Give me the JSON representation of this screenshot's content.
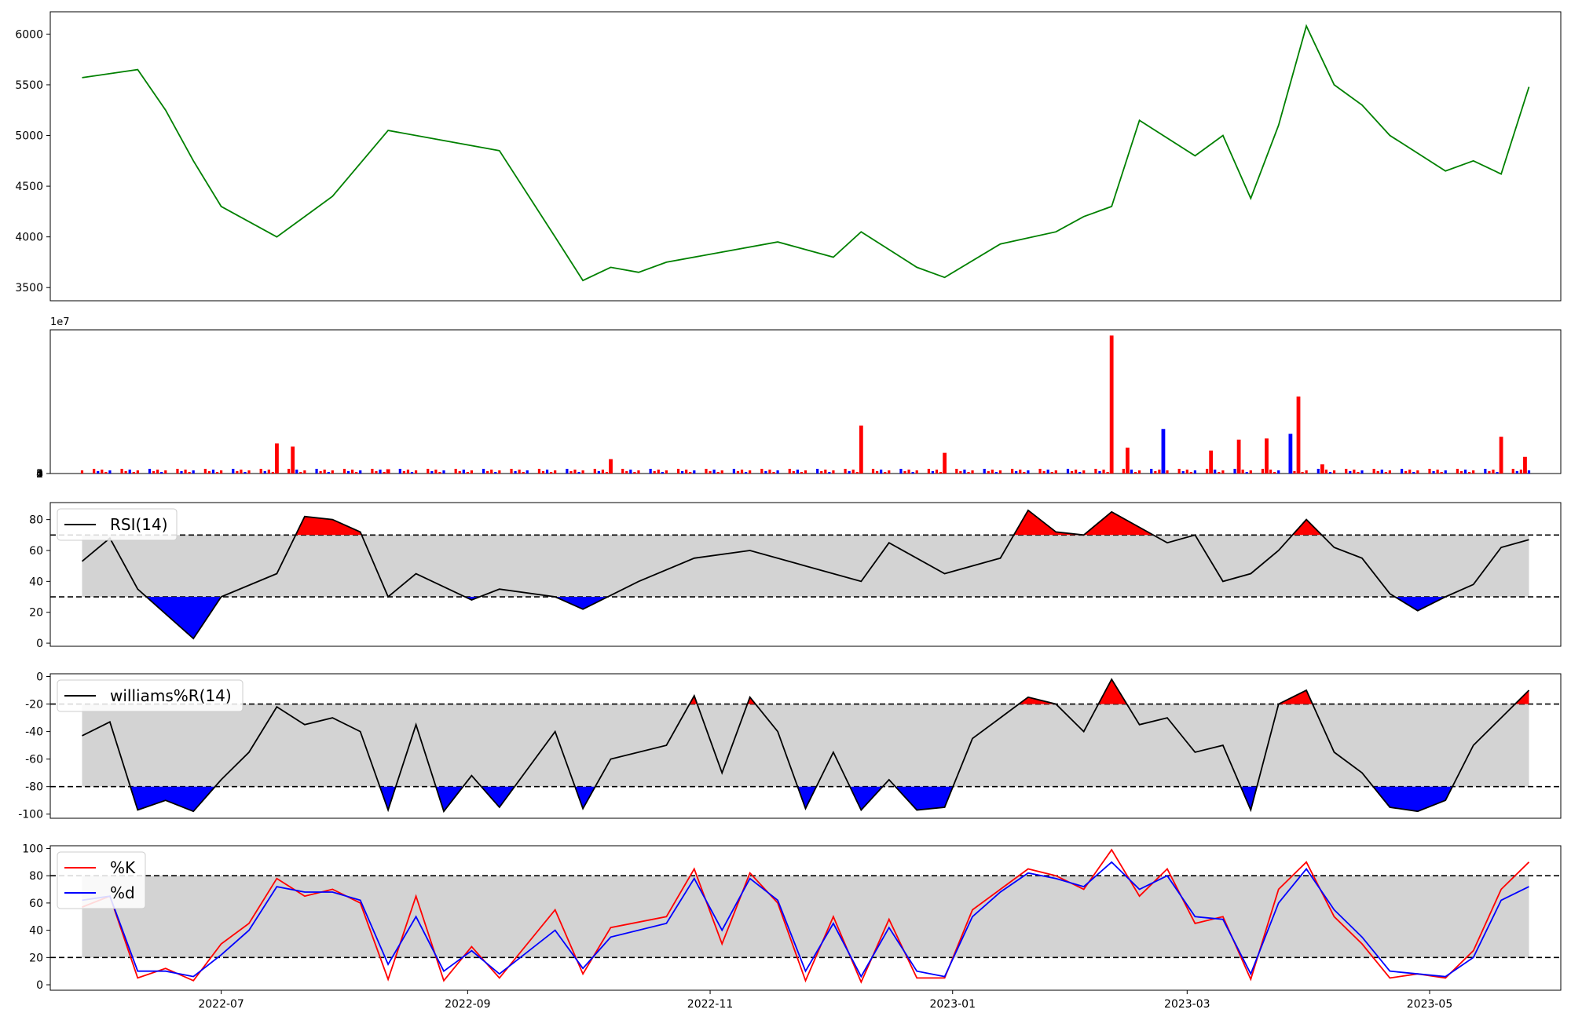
{
  "chart_data": [
    {
      "panel": "price",
      "type": "line",
      "color": "#008000",
      "yticks": [
        "3500",
        "4000",
        "4500",
        "5000",
        "5500",
        "6000"
      ],
      "ylim": [
        3370,
        6220
      ],
      "x": [
        "2022-05-27",
        "2022-06-10",
        "2022-06-17",
        "2022-06-24",
        "2022-07-01",
        "2022-07-15",
        "2022-07-29",
        "2022-08-12",
        "2022-08-26",
        "2022-09-09",
        "2022-09-23",
        "2022-09-30",
        "2022-10-07",
        "2022-10-14",
        "2022-10-21",
        "2022-11-04",
        "2022-11-18",
        "2022-12-02",
        "2022-12-09",
        "2022-12-23",
        "2022-12-30",
        "2023-01-13",
        "2023-01-27",
        "2023-02-03",
        "2023-02-10",
        "2023-02-17",
        "2023-03-03",
        "2023-03-10",
        "2023-03-17",
        "2023-03-24",
        "2023-03-31",
        "2023-04-07",
        "2023-04-14",
        "2023-04-21",
        "2023-05-05",
        "2023-05-12",
        "2023-05-19",
        "2023-05-26"
      ],
      "y": [
        5570,
        5650,
        5250,
        4750,
        4300,
        4000,
        4400,
        5050,
        4950,
        4850,
        4000,
        3570,
        3700,
        3650,
        3750,
        3850,
        3950,
        3800,
        4050,
        3700,
        3600,
        3930,
        4050,
        4200,
        4300,
        5150,
        4800,
        5000,
        4380,
        5100,
        6080,
        5500,
        5300,
        5000,
        4650,
        4750,
        4620,
        5480
      ]
    },
    {
      "panel": "volume",
      "type": "bar",
      "exponent_label": "1e7",
      "yticks": [
        "0",
        "1",
        "2",
        "3",
        "4",
        "5"
      ],
      "ylim": [
        0,
        50000000
      ],
      "up_color": "#ff0000",
      "down_color": "#0000ff",
      "x": [
        "2022-07-15",
        "2022-07-19",
        "2022-08-12",
        "2022-10-07",
        "2022-12-09",
        "2022-12-30",
        "2023-02-10",
        "2023-02-14",
        "2023-02-23",
        "2023-03-07",
        "2023-03-14",
        "2023-03-21",
        "2023-03-27",
        "2023-03-29",
        "2023-04-04",
        "2023-05-19",
        "2023-05-25"
      ],
      "y": [
        10500000,
        9400000,
        1500000,
        5000000,
        16700000,
        7200000,
        48000000,
        9000000,
        15500000,
        8000000,
        11800000,
        12200000,
        13800000,
        26800000,
        3200000,
        12800000,
        5800000
      ],
      "up": [
        true,
        true,
        true,
        true,
        true,
        true,
        true,
        true,
        false,
        true,
        true,
        true,
        false,
        true,
        true,
        true,
        true
      ]
    },
    {
      "panel": "rsi",
      "type": "line",
      "legend": "RSI(14)",
      "color": "#000000",
      "overbought_color": "#ff0000",
      "oversold_color": "#0000ff",
      "band_color": "#d3d3d3",
      "upper": 70,
      "lower": 30,
      "yticks": [
        "0",
        "20",
        "40",
        "60",
        "80"
      ],
      "ylim": [
        -2,
        91
      ],
      "x": [
        "2022-05-27",
        "2022-06-03",
        "2022-06-10",
        "2022-06-24",
        "2022-07-01",
        "2022-07-15",
        "2022-07-22",
        "2022-07-29",
        "2022-08-05",
        "2022-08-12",
        "2022-08-19",
        "2022-09-02",
        "2022-09-09",
        "2022-09-23",
        "2022-09-30",
        "2022-10-14",
        "2022-10-28",
        "2022-11-11",
        "2022-11-25",
        "2022-12-09",
        "2022-12-16",
        "2022-12-30",
        "2023-01-13",
        "2023-01-20",
        "2023-01-27",
        "2023-02-03",
        "2023-02-10",
        "2023-02-17",
        "2023-02-24",
        "2023-03-03",
        "2023-03-10",
        "2023-03-17",
        "2023-03-24",
        "2023-03-31",
        "2023-04-07",
        "2023-04-14",
        "2023-04-21",
        "2023-04-28",
        "2023-05-05",
        "2023-05-12",
        "2023-05-19",
        "2023-05-26"
      ],
      "y": [
        53,
        68,
        35,
        3,
        30,
        45,
        82,
        80,
        72,
        30,
        45,
        28,
        35,
        30,
        22,
        40,
        55,
        60,
        50,
        40,
        65,
        45,
        55,
        86,
        72,
        70,
        85,
        75,
        65,
        70,
        40,
        45,
        60,
        80,
        62,
        55,
        32,
        21,
        30,
        38,
        62,
        67
      ]
    },
    {
      "panel": "williams",
      "type": "line",
      "legend": "williams%R(14)",
      "color": "#000000",
      "overbought_color": "#ff0000",
      "oversold_color": "#0000ff",
      "band_color": "#d3d3d3",
      "upper": -20,
      "lower": -80,
      "yticks": [
        "0",
        "-20",
        "-40",
        "-60",
        "-80",
        "-100"
      ],
      "ylim": [
        -103,
        2
      ],
      "x": [
        "2022-05-27",
        "2022-06-03",
        "2022-06-10",
        "2022-06-17",
        "2022-06-24",
        "2022-07-01",
        "2022-07-08",
        "2022-07-15",
        "2022-07-22",
        "2022-07-29",
        "2022-08-05",
        "2022-08-12",
        "2022-08-19",
        "2022-08-26",
        "2022-09-02",
        "2022-09-09",
        "2022-09-23",
        "2022-09-30",
        "2022-10-07",
        "2022-10-21",
        "2022-10-28",
        "2022-11-04",
        "2022-11-11",
        "2022-11-18",
        "2022-11-25",
        "2022-12-02",
        "2022-12-09",
        "2022-12-16",
        "2022-12-23",
        "2022-12-30",
        "2023-01-06",
        "2023-01-13",
        "2023-01-20",
        "2023-01-27",
        "2023-02-03",
        "2023-02-10",
        "2023-02-17",
        "2023-02-24",
        "2023-03-03",
        "2023-03-10",
        "2023-03-17",
        "2023-03-24",
        "2023-03-31",
        "2023-04-07",
        "2023-04-14",
        "2023-04-21",
        "2023-04-28",
        "2023-05-05",
        "2023-05-12",
        "2023-05-19",
        "2023-05-26"
      ],
      "y": [
        -43,
        -33,
        -97,
        -90,
        -98,
        -75,
        -55,
        -22,
        -35,
        -30,
        -40,
        -97,
        -35,
        -98,
        -72,
        -95,
        -40,
        -96,
        -60,
        -50,
        -14,
        -70,
        -15,
        -40,
        -96,
        -55,
        -97,
        -75,
        -97,
        -95,
        -45,
        -30,
        -15,
        -20,
        -40,
        -2,
        -35,
        -30,
        -55,
        -50,
        -97,
        -20,
        -10,
        -55,
        -70,
        -95,
        -98,
        -90,
        -50,
        -30,
        -10
      ]
    },
    {
      "panel": "stochastic",
      "type": "line",
      "band_color": "#d3d3d3",
      "upper": 80,
      "lower": 20,
      "yticks": [
        "0",
        "20",
        "40",
        "60",
        "80",
        "100"
      ],
      "ylim": [
        -4,
        102
      ],
      "xticks": [
        "2022-07",
        "2022-09",
        "2022-11",
        "2023-01",
        "2023-03",
        "2023-05"
      ],
      "xlim": [
        "2022-05-19",
        "2023-06-03"
      ],
      "series": [
        {
          "name": "%K",
          "color": "#ff0000",
          "x": [
            "2022-05-27",
            "2022-06-03",
            "2022-06-10",
            "2022-06-17",
            "2022-06-24",
            "2022-07-01",
            "2022-07-08",
            "2022-07-15",
            "2022-07-22",
            "2022-07-29",
            "2022-08-05",
            "2022-08-12",
            "2022-08-19",
            "2022-08-26",
            "2022-09-02",
            "2022-09-09",
            "2022-09-23",
            "2022-09-30",
            "2022-10-07",
            "2022-10-21",
            "2022-10-28",
            "2022-11-04",
            "2022-11-11",
            "2022-11-18",
            "2022-11-25",
            "2022-12-02",
            "2022-12-09",
            "2022-12-16",
            "2022-12-23",
            "2022-12-30",
            "2023-01-06",
            "2023-01-13",
            "2023-01-20",
            "2023-01-27",
            "2023-02-03",
            "2023-02-10",
            "2023-02-17",
            "2023-02-24",
            "2023-03-03",
            "2023-03-10",
            "2023-03-17",
            "2023-03-24",
            "2023-03-31",
            "2023-04-07",
            "2023-04-14",
            "2023-04-21",
            "2023-04-28",
            "2023-05-05",
            "2023-05-12",
            "2023-05-19",
            "2023-05-26"
          ],
          "y": [
            57,
            65,
            5,
            12,
            3,
            30,
            45,
            78,
            65,
            70,
            60,
            4,
            65,
            3,
            28,
            5,
            55,
            8,
            42,
            50,
            85,
            30,
            82,
            60,
            3,
            50,
            2,
            48,
            5,
            5,
            55,
            70,
            85,
            80,
            70,
            99,
            65,
            85,
            45,
            50,
            4,
            70,
            90,
            50,
            30,
            5,
            8,
            5,
            25,
            70,
            90
          ]
        },
        {
          "name": "%d",
          "color": "#0000ff",
          "x": [
            "2022-05-27",
            "2022-06-03",
            "2022-06-10",
            "2022-06-17",
            "2022-06-24",
            "2022-07-01",
            "2022-07-08",
            "2022-07-15",
            "2022-07-22",
            "2022-07-29",
            "2022-08-05",
            "2022-08-12",
            "2022-08-19",
            "2022-08-26",
            "2022-09-02",
            "2022-09-09",
            "2022-09-23",
            "2022-09-30",
            "2022-10-07",
            "2022-10-21",
            "2022-10-28",
            "2022-11-04",
            "2022-11-11",
            "2022-11-18",
            "2022-11-25",
            "2022-12-02",
            "2022-12-09",
            "2022-12-16",
            "2022-12-23",
            "2022-12-30",
            "2023-01-06",
            "2023-01-13",
            "2023-01-20",
            "2023-01-27",
            "2023-02-03",
            "2023-02-10",
            "2023-02-17",
            "2023-02-24",
            "2023-03-03",
            "2023-03-10",
            "2023-03-17",
            "2023-03-24",
            "2023-03-31",
            "2023-04-07",
            "2023-04-14",
            "2023-04-21",
            "2023-04-28",
            "2023-05-05",
            "2023-05-12",
            "2023-05-19",
            "2023-05-26"
          ],
          "y": [
            62,
            65,
            10,
            10,
            6,
            22,
            40,
            72,
            68,
            68,
            62,
            15,
            50,
            10,
            25,
            8,
            40,
            12,
            35,
            45,
            78,
            40,
            78,
            62,
            10,
            45,
            6,
            42,
            10,
            6,
            50,
            68,
            82,
            78,
            72,
            90,
            70,
            80,
            50,
            48,
            8,
            60,
            85,
            55,
            35,
            10,
            8,
            6,
            20,
            62,
            72
          ]
        }
      ]
    }
  ]
}
